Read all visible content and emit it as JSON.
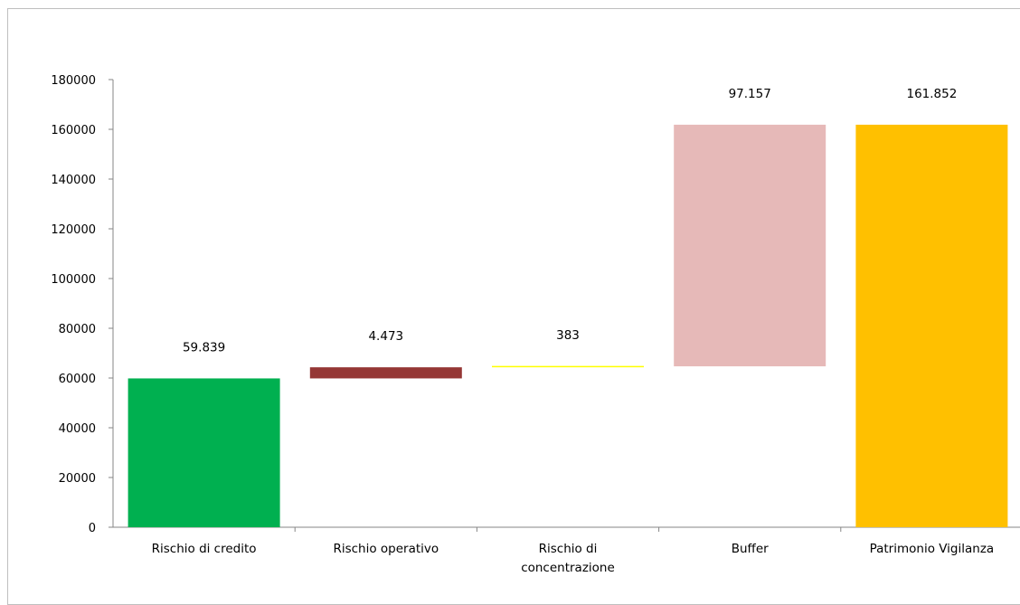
{
  "chart_data": {
    "type": "bar",
    "subtype": "waterfall",
    "title": "",
    "xlabel": "",
    "ylabel": "",
    "ylim": [
      0,
      180000
    ],
    "yticks": [
      "0",
      "20000",
      "40000",
      "60000",
      "80000",
      "100000",
      "120000",
      "140000",
      "160000",
      "180000"
    ],
    "grid": false,
    "legend": "none",
    "categories": [
      {
        "label_lines": [
          "Rischio di credito"
        ],
        "base": 0,
        "value": 59839,
        "label": "59.839",
        "color": "#00b050"
      },
      {
        "label_lines": [
          "Rischio operativo"
        ],
        "base": 59839,
        "value": 4473,
        "label": "4.473",
        "color": "#953735"
      },
      {
        "label_lines": [
          "Rischio di",
          "concentrazione"
        ],
        "base": 64312,
        "value": 383,
        "label": "383",
        "color": "#ffff00"
      },
      {
        "label_lines": [
          "Buffer"
        ],
        "base": 64695,
        "value": 97157,
        "label": "97.157",
        "color": "#e6b9b8"
      },
      {
        "label_lines": [
          "Patrimonio Vigilanza"
        ],
        "base": 0,
        "value": 161852,
        "label": "161.852",
        "color": "#ffc000"
      }
    ]
  }
}
